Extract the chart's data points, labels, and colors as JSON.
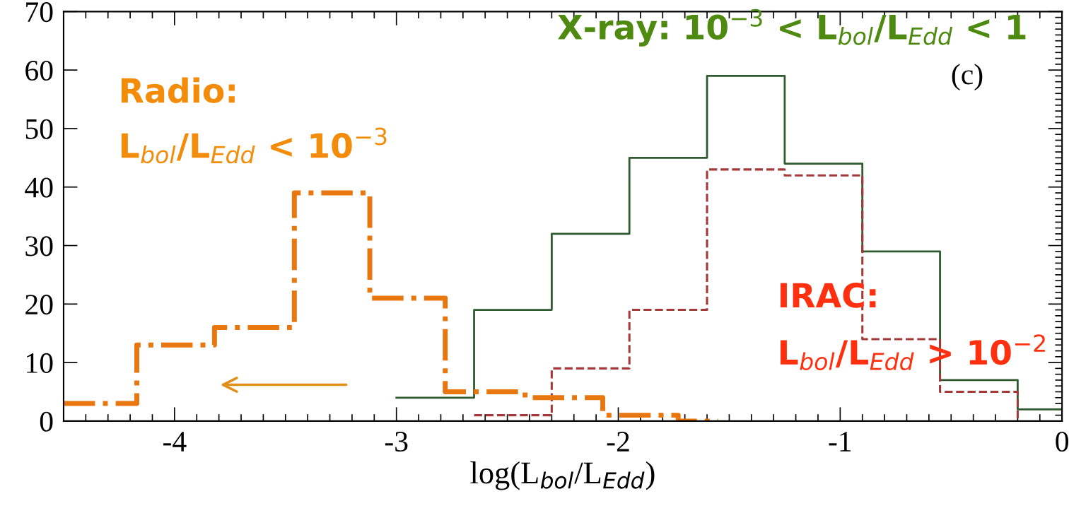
{
  "chart_data": {
    "type": "step",
    "xlabel": "log(L$_{bol}$/L$_{Edd}$)",
    "xlim": [
      -4.5,
      0
    ],
    "xticks": [
      -4,
      -3,
      -2,
      -1,
      0
    ],
    "ylim": [
      0,
      70
    ],
    "yticks": [
      0,
      10,
      20,
      30,
      40,
      50,
      60,
      70
    ],
    "grid": false,
    "series": [
      {
        "color": "#2f5a2f",
        "line_style": "solid",
        "x": [
          -3.0,
          -2.65,
          -2.3,
          -1.95,
          -1.6,
          -1.25,
          -0.9,
          -0.55,
          -0.2,
          0
        ],
        "values": [
          4,
          19,
          32,
          45,
          59,
          44,
          29,
          7,
          2,
          2
        ]
      },
      {
        "color": "#a33a3a",
        "line_style": "dashed",
        "x": [
          -2.65,
          -2.3,
          -1.95,
          -1.6,
          -1.25,
          -0.9,
          -0.55,
          -0.2
        ],
        "values": [
          1,
          9,
          19,
          43,
          42,
          14,
          5,
          0
        ]
      },
      {
        "color": "#e8770f",
        "line_style": "dashdot",
        "x": [
          -4.5,
          -4.17,
          -3.82,
          -3.46,
          -3.12,
          -2.78,
          -2.42,
          -2.07,
          -1.73,
          -1.55
        ],
        "values": [
          3,
          13,
          16,
          39,
          21,
          5,
          4,
          1,
          0,
          0
        ]
      }
    ],
    "annotations": [
      "X-ray: 10$^{−3}$ < L$_{bol}$/L$_{Edd}$ < 1",
      "Radio:",
      "L$_{bol}$/L$_{Edd}$ < 10$^{−3}$",
      "IRAC:",
      "L$_{bol}$/L$_{Edd}$ > 10$^{−2}$",
      "(c)"
    ]
  }
}
